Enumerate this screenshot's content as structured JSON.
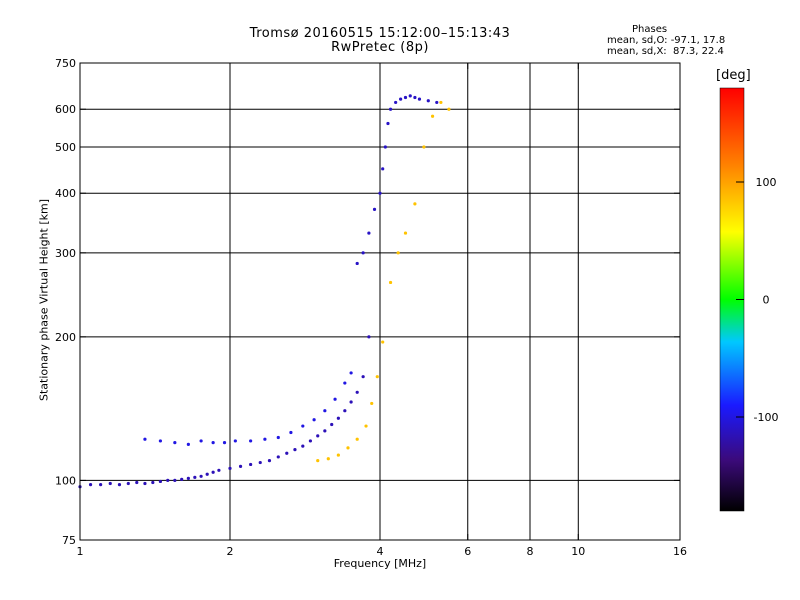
{
  "title_line1": "Tromsø 20160515 15:12:00–15:13:43",
  "title_line2": "RwPretec (8p)",
  "phases": {
    "header": "Phases",
    "o_mode": "mean, sd,O: -97.1, 17.8",
    "x_mode": "mean, sd,X:  87.3, 22.4"
  },
  "chart_data": {
    "type": "scatter",
    "xlabel": "Frequency [MHz]",
    "ylabel": "Stationary phase Virtual Height [km]",
    "x_scale": "log",
    "y_scale": "log",
    "xlim": [
      1,
      16
    ],
    "ylim": [
      75,
      750
    ],
    "x_ticks": [
      1,
      2,
      4,
      6,
      8,
      10,
      16
    ],
    "x_tick_labels": [
      "1",
      "2",
      "4",
      "6",
      "8",
      "10",
      "16"
    ],
    "x_grid": [
      2,
      4,
      6,
      8,
      10
    ],
    "y_ticks": [
      75,
      100,
      200,
      300,
      400,
      500,
      600,
      750
    ],
    "y_tick_labels": [
      "75",
      "100",
      "200",
      "300",
      "400",
      "500",
      "600",
      "750"
    ],
    "y_grid": [
      100,
      200,
      300,
      400,
      500,
      600
    ],
    "grid": true,
    "colorbar": {
      "label": "[deg]",
      "range": [
        -180,
        180
      ],
      "ticks": [
        100,
        0,
        -100
      ],
      "tick_labels": [
        "100",
        "0",
        "-100"
      ]
    },
    "series": [
      {
        "color_phase": -115,
        "points": [
          [
            1.0,
            97
          ],
          [
            1.05,
            98
          ],
          [
            1.1,
            98
          ],
          [
            1.15,
            98.5
          ],
          [
            1.2,
            98
          ],
          [
            1.25,
            98.5
          ],
          [
            1.3,
            99
          ],
          [
            1.35,
            98.5
          ],
          [
            1.4,
            99
          ],
          [
            1.45,
            99.5
          ],
          [
            1.5,
            100
          ],
          [
            1.55,
            100
          ],
          [
            1.6,
            100.5
          ],
          [
            1.65,
            101
          ],
          [
            1.7,
            101.5
          ],
          [
            1.75,
            102
          ],
          [
            1.8,
            103
          ],
          [
            1.85,
            104
          ],
          [
            1.9,
            105
          ],
          [
            2.0,
            106
          ],
          [
            2.1,
            107
          ],
          [
            2.2,
            108
          ],
          [
            2.3,
            109
          ],
          [
            2.4,
            110
          ],
          [
            2.5,
            112
          ],
          [
            2.6,
            114
          ],
          [
            2.7,
            116
          ],
          [
            2.8,
            118
          ],
          [
            2.9,
            121
          ],
          [
            3.0,
            124
          ],
          [
            3.1,
            127
          ],
          [
            3.2,
            131
          ],
          [
            3.3,
            135
          ],
          [
            3.4,
            140
          ],
          [
            3.5,
            146
          ],
          [
            3.6,
            153
          ],
          [
            3.7,
            165
          ],
          [
            3.8,
            200
          ]
        ]
      },
      {
        "color_phase": -100,
        "points": [
          [
            1.35,
            122
          ],
          [
            1.45,
            121
          ],
          [
            1.55,
            120
          ],
          [
            1.65,
            119
          ],
          [
            1.75,
            121
          ],
          [
            1.85,
            120
          ],
          [
            1.95,
            120
          ],
          [
            2.05,
            121
          ],
          [
            2.2,
            121
          ],
          [
            2.35,
            122
          ],
          [
            2.5,
            123
          ],
          [
            2.65,
            126
          ],
          [
            2.8,
            130
          ],
          [
            2.95,
            134
          ],
          [
            3.1,
            140
          ],
          [
            3.25,
            148
          ],
          [
            3.4,
            160
          ],
          [
            3.5,
            168
          ]
        ]
      },
      {
        "color_phase": -110,
        "points": [
          [
            3.6,
            285
          ],
          [
            3.7,
            300
          ],
          [
            3.8,
            330
          ],
          [
            3.9,
            370
          ],
          [
            4.0,
            400
          ],
          [
            4.05,
            450
          ],
          [
            4.1,
            500
          ],
          [
            4.15,
            560
          ],
          [
            4.2,
            600
          ],
          [
            4.3,
            620
          ],
          [
            4.4,
            630
          ],
          [
            4.5,
            635
          ],
          [
            4.6,
            640
          ],
          [
            4.7,
            635
          ],
          [
            4.8,
            630
          ],
          [
            5.0,
            625
          ],
          [
            5.2,
            620
          ]
        ]
      },
      {
        "color_phase": 85,
        "points": [
          [
            3.0,
            110
          ],
          [
            3.15,
            111
          ],
          [
            3.3,
            113
          ],
          [
            3.45,
            117
          ],
          [
            3.6,
            122
          ],
          [
            3.75,
            130
          ],
          [
            3.85,
            145
          ],
          [
            3.95,
            165
          ],
          [
            4.05,
            195
          ],
          [
            4.2,
            260
          ],
          [
            4.35,
            300
          ],
          [
            4.5,
            330
          ],
          [
            4.7,
            380
          ],
          [
            4.9,
            500
          ],
          [
            5.1,
            580
          ],
          [
            5.3,
            620
          ],
          [
            5.5,
            600
          ]
        ]
      }
    ]
  }
}
